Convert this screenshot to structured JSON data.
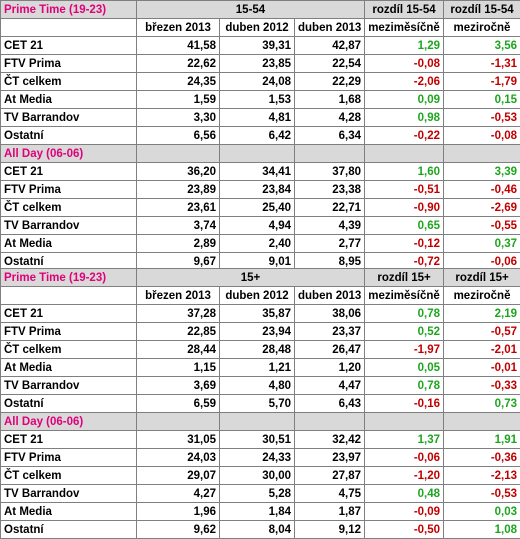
{
  "tables": [
    {
      "audience": "15-54",
      "diff_header": "rozdíl 15-54",
      "col_headers": [
        "březen 2013",
        "duben 2012",
        "duben 2013",
        "meziměsíčně",
        "meziročně"
      ],
      "sections": [
        {
          "title": "Prime Time (19-23)",
          "rows": [
            {
              "name": "CET 21",
              "v": [
                "41,58",
                "39,31",
                "42,87"
              ],
              "d": [
                "1,29",
                "3,56"
              ]
            },
            {
              "name": "FTV Prima",
              "v": [
                "22,62",
                "23,85",
                "22,54"
              ],
              "d": [
                "-0,08",
                "-1,31"
              ]
            },
            {
              "name": "ČT celkem",
              "v": [
                "24,35",
                "24,08",
                "22,29"
              ],
              "d": [
                "-2,06",
                "-1,79"
              ]
            },
            {
              "name": "At Media",
              "v": [
                "1,59",
                "1,53",
                "1,68"
              ],
              "d": [
                "0,09",
                "0,15"
              ]
            },
            {
              "name": "TV Barrandov",
              "v": [
                "3,30",
                "4,81",
                "4,28"
              ],
              "d": [
                "0,98",
                "-0,53"
              ]
            },
            {
              "name": "Ostatní",
              "v": [
                "6,56",
                "6,42",
                "6,34"
              ],
              "d": [
                "-0,22",
                "-0,08"
              ]
            }
          ]
        },
        {
          "title": "All Day (06-06)",
          "rows": [
            {
              "name": "CET 21",
              "v": [
                "36,20",
                "34,41",
                "37,80"
              ],
              "d": [
                "1,60",
                "3,39"
              ]
            },
            {
              "name": "FTV Prima",
              "v": [
                "23,89",
                "23,84",
                "23,38"
              ],
              "d": [
                "-0,51",
                "-0,46"
              ]
            },
            {
              "name": "ČT celkem",
              "v": [
                "23,61",
                "25,40",
                "22,71"
              ],
              "d": [
                "-0,90",
                "-2,69"
              ]
            },
            {
              "name": "TV Barrandov",
              "v": [
                "3,74",
                "4,94",
                "4,39"
              ],
              "d": [
                "0,65",
                "-0,55"
              ]
            },
            {
              "name": "At Media",
              "v": [
                "2,89",
                "2,40",
                "2,77"
              ],
              "d": [
                "-0,12",
                "0,37"
              ]
            },
            {
              "name": "Ostatní",
              "v": [
                "9,67",
                "9,01",
                "8,95"
              ],
              "d": [
                "-0,72",
                "-0,06"
              ]
            }
          ]
        }
      ]
    },
    {
      "audience": "15+",
      "diff_header": "rozdíl 15+",
      "col_headers": [
        "březen 2013",
        "duben 2012",
        "duben 2013",
        "meziměsíčně",
        "meziročně"
      ],
      "sections": [
        {
          "title": "Prime Time (19-23)",
          "rows": [
            {
              "name": "CET 21",
              "v": [
                "37,28",
                "35,87",
                "38,06"
              ],
              "d": [
                "0,78",
                "2,19"
              ]
            },
            {
              "name": "FTV Prima",
              "v": [
                "22,85",
                "23,94",
                "23,37"
              ],
              "d": [
                "0,52",
                "-0,57"
              ]
            },
            {
              "name": "ČT celkem",
              "v": [
                "28,44",
                "28,48",
                "26,47"
              ],
              "d": [
                "-1,97",
                "-2,01"
              ]
            },
            {
              "name": "At Media",
              "v": [
                "1,15",
                "1,21",
                "1,20"
              ],
              "d": [
                "0,05",
                "-0,01"
              ]
            },
            {
              "name": "TV Barrandov",
              "v": [
                "3,69",
                "4,80",
                "4,47"
              ],
              "d": [
                "0,78",
                "-0,33"
              ]
            },
            {
              "name": "Ostatní",
              "v": [
                "6,59",
                "5,70",
                "6,43"
              ],
              "d": [
                "-0,16",
                "0,73"
              ]
            }
          ]
        },
        {
          "title": "All Day (06-06)",
          "rows": [
            {
              "name": "CET 21",
              "v": [
                "31,05",
                "30,51",
                "32,42"
              ],
              "d": [
                "1,37",
                "1,91"
              ]
            },
            {
              "name": "FTV Prima",
              "v": [
                "24,03",
                "24,33",
                "23,97"
              ],
              "d": [
                "-0,06",
                "-0,36"
              ]
            },
            {
              "name": "ČT celkem",
              "v": [
                "29,07",
                "30,00",
                "27,87"
              ],
              "d": [
                "-1,20",
                "-2,13"
              ]
            },
            {
              "name": "TV Barrandov",
              "v": [
                "4,27",
                "5,28",
                "4,75"
              ],
              "d": [
                "0,48",
                "-0,53"
              ]
            },
            {
              "name": "At Media",
              "v": [
                "1,96",
                "1,84",
                "1,87"
              ],
              "d": [
                "-0,09",
                "0,03"
              ]
            },
            {
              "name": "Ostatní",
              "v": [
                "9,62",
                "8,04",
                "9,12"
              ],
              "d": [
                "-0,50",
                "1,08"
              ]
            }
          ]
        }
      ]
    }
  ],
  "colors": {
    "section_title": "#e0007a",
    "section_bg": "#d9d9d9",
    "positive": "#1ea51e",
    "negative": "#c00000",
    "border": "#7f7f7f"
  }
}
